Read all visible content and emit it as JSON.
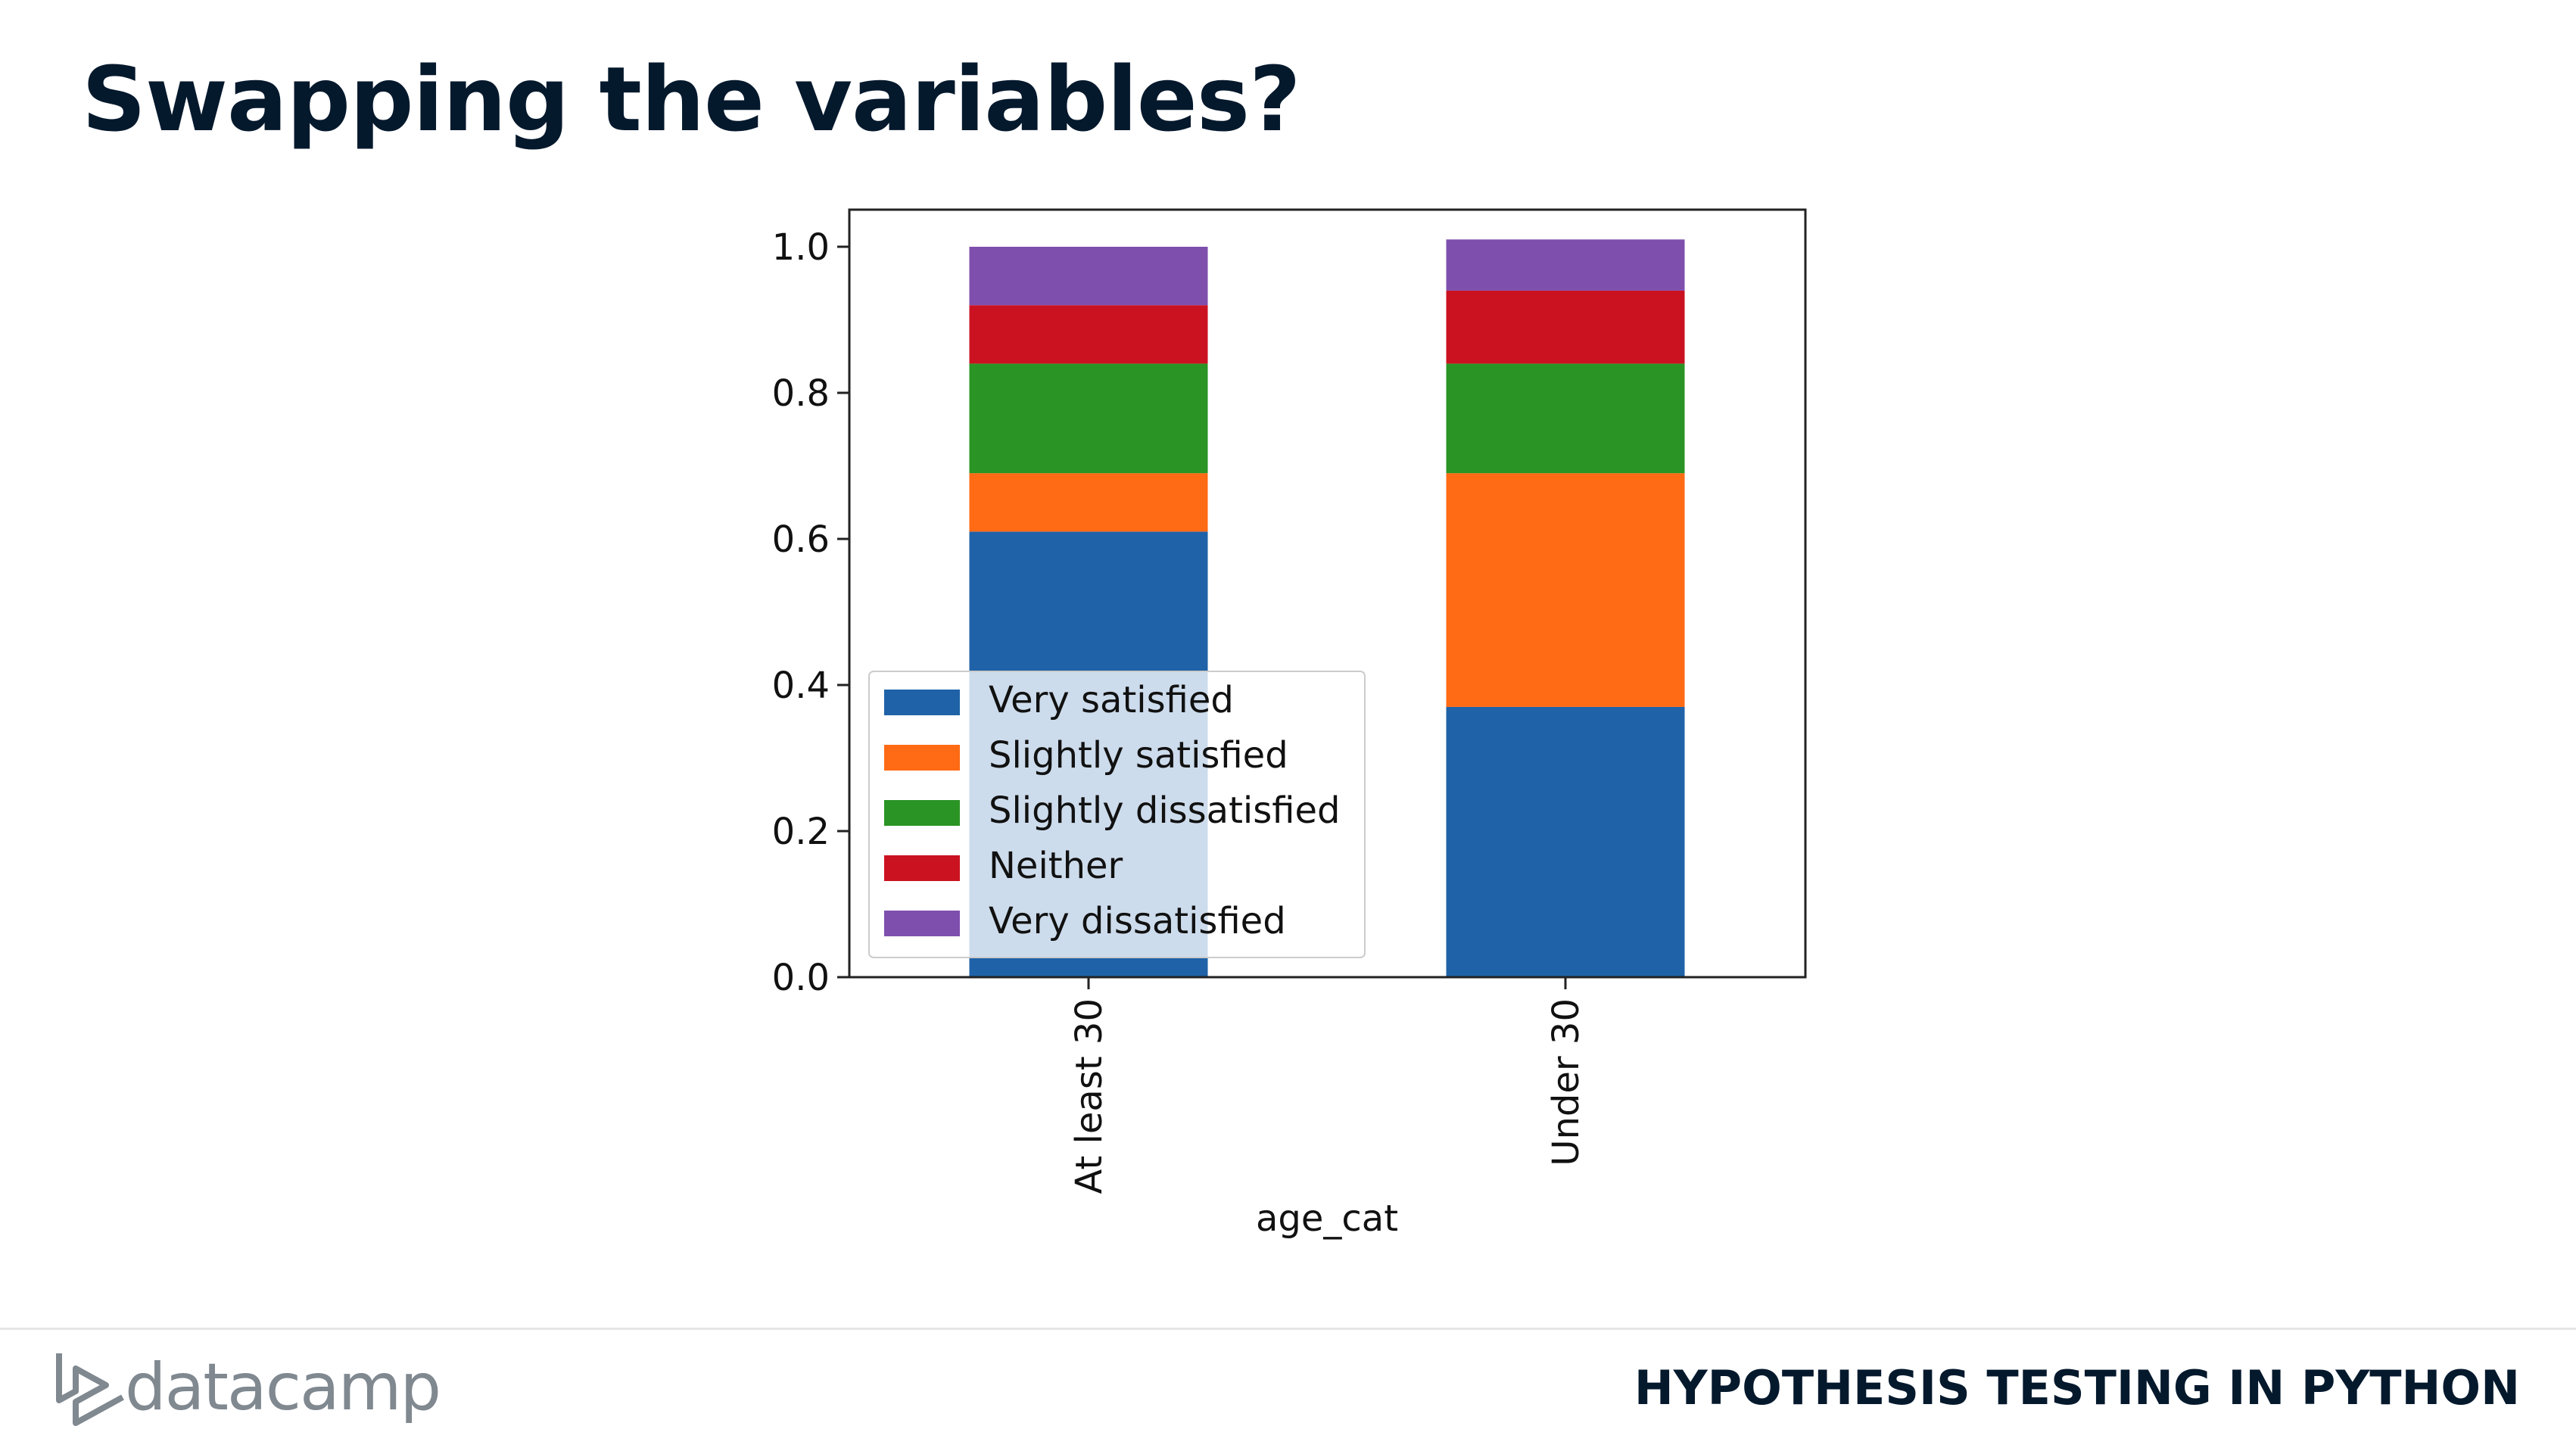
{
  "slide": {
    "title": "Swapping the variables?",
    "brand": "datacamp",
    "course": "HYPOTHESIS TESTING IN PYTHON"
  },
  "chart_data": {
    "type": "bar",
    "stacked": true,
    "categories": [
      "At least 30",
      "Under 30"
    ],
    "series": [
      {
        "name": "Very satisfied",
        "color": "#1f62a7",
        "values": [
          0.61,
          0.37
        ]
      },
      {
        "name": "Slightly satisfied",
        "color": "#ff6a14",
        "values": [
          0.08,
          0.32
        ]
      },
      {
        "name": "Slightly dissatisfied",
        "color": "#2a9424",
        "values": [
          0.15,
          0.15
        ]
      },
      {
        "name": "Neither",
        "color": "#cb1220",
        "values": [
          0.08,
          0.1
        ]
      },
      {
        "name": "Very dissatisfied",
        "color": "#7f4fae",
        "values": [
          0.08,
          0.07
        ]
      }
    ],
    "xlabel": "age_cat",
    "ylabel": "",
    "ylim": [
      0,
      1.05
    ],
    "yticks": [
      "0.0",
      "0.2",
      "0.4",
      "0.6",
      "0.8",
      "1.0"
    ],
    "legend_position": "lower-left",
    "grid": false
  }
}
